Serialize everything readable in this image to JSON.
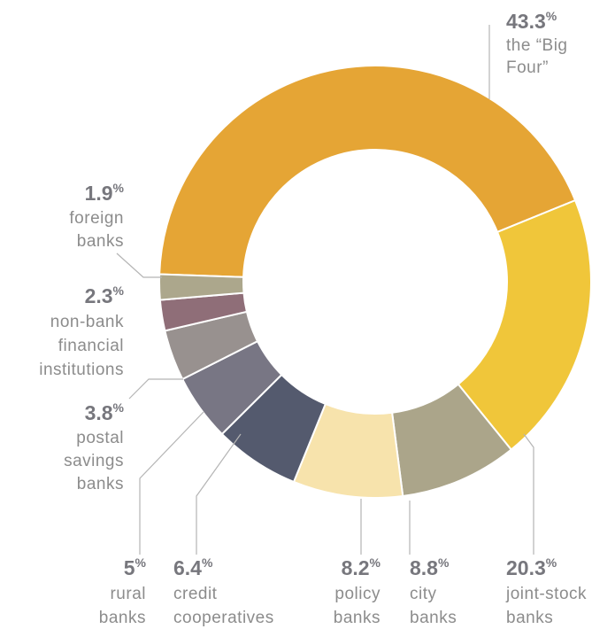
{
  "chart_data": {
    "type": "donut",
    "unit": "%",
    "categories": [
      [
        "the “Big",
        "Four”"
      ],
      [
        "joint-stock",
        "banks"
      ],
      [
        "city",
        "banks"
      ],
      [
        "policy",
        "banks"
      ],
      [
        "credit",
        "cooperatives"
      ],
      [
        "rural",
        "banks"
      ],
      [
        "postal",
        "savings",
        "banks"
      ],
      [
        "non-bank",
        "financial",
        "institutions"
      ],
      [
        "foreign",
        "banks"
      ]
    ],
    "values": [
      43.3,
      20.3,
      8.8,
      8.2,
      6.4,
      5,
      3.8,
      2.3,
      1.9
    ],
    "colors": [
      "#e5a535",
      "#f0c63a",
      "#aba58a",
      "#f7e3ac",
      "#545a6e",
      "#787684",
      "#98918f",
      "#8f6e78",
      "#aca78c"
    ]
  }
}
